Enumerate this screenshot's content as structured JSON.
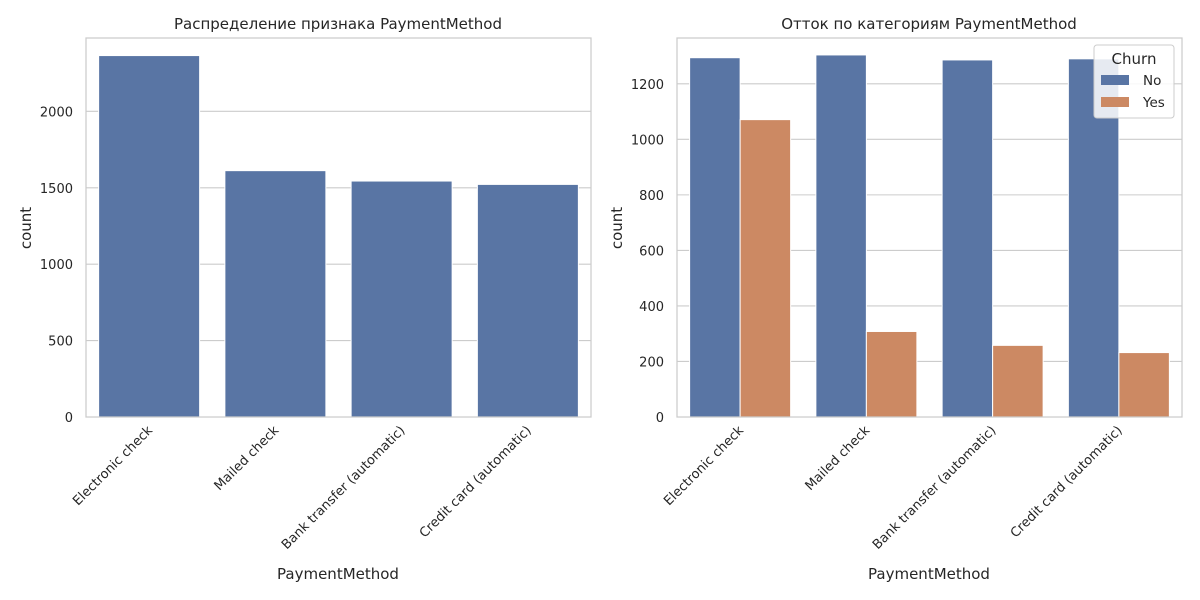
{
  "colors": {
    "no": "#5975a4",
    "yes": "#cc8963",
    "grid": "#cccccc",
    "spine": "#cccccc",
    "text": "#262626"
  },
  "chart_data": [
    {
      "type": "bar",
      "title": "Распределение признака PaymentMethod",
      "xlabel": "PaymentMethod",
      "ylabel": "count",
      "ylim": [
        0,
        2480
      ],
      "yticks": [
        "0",
        "500",
        "1000",
        "1500",
        "2000"
      ],
      "ytick_values": [
        0,
        500,
        1000,
        1500,
        2000
      ],
      "grid": "horizontal",
      "categories": [
        "Electronic check",
        "Mailed check",
        "Bank transfer (automatic)",
        "Credit card (automatic)"
      ],
      "series": [
        {
          "values": [
            2365,
            1612,
            1544,
            1522
          ]
        }
      ]
    },
    {
      "type": "bar",
      "title": "Отток по категориям PaymentMethod",
      "xlabel": "PaymentMethod",
      "ylabel": "count",
      "ylim": [
        0,
        1365
      ],
      "yticks": [
        "0",
        "200",
        "400",
        "600",
        "800",
        "1000",
        "1200"
      ],
      "ytick_values": [
        0,
        200,
        400,
        600,
        800,
        1000,
        1200
      ],
      "grid": "horizontal",
      "categories": [
        "Electronic check",
        "Mailed check",
        "Bank transfer (automatic)",
        "Credit card (automatic)"
      ],
      "legend": {
        "title": "Churn",
        "placement": "top-right"
      },
      "series": [
        {
          "name": "No",
          "values": [
            1294,
            1304,
            1286,
            1290
          ]
        },
        {
          "name": "Yes",
          "values": [
            1071,
            308,
            258,
            232
          ]
        }
      ]
    }
  ]
}
